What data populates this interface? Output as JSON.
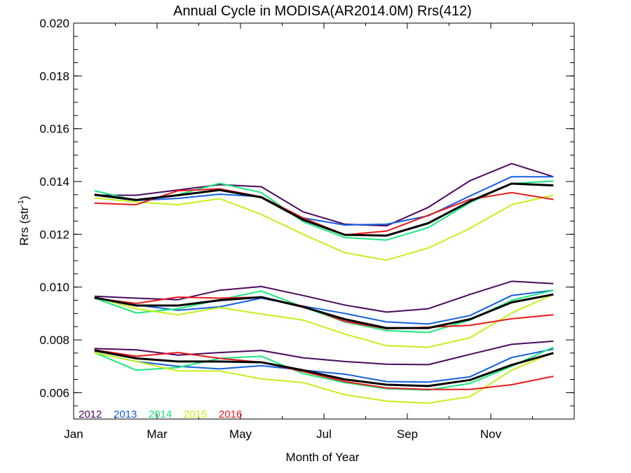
{
  "chart_data": {
    "type": "line",
    "title": "Annual Cycle in MODISA(AR2014.0M) Rrs(412)",
    "xlabel": "Month of Year",
    "ylabel": "Rrs (str",
    "ylabel_sup": "-1",
    "ylabel_close": ")",
    "xlim": [
      1,
      13
    ],
    "ylim": [
      0.005,
      0.02
    ],
    "x_ticks": [
      {
        "value": 1,
        "label": "Jan"
      },
      {
        "value": 3,
        "label": "Mar"
      },
      {
        "value": 5,
        "label": "May"
      },
      {
        "value": 7,
        "label": "Jul"
      },
      {
        "value": 9,
        "label": "Sep"
      },
      {
        "value": 11,
        "label": "Nov"
      }
    ],
    "y_ticks": [
      {
        "value": 0.006,
        "label": "0.006"
      },
      {
        "value": 0.008,
        "label": "0.008"
      },
      {
        "value": 0.01,
        "label": "0.010"
      },
      {
        "value": 0.012,
        "label": "0.012"
      },
      {
        "value": 0.014,
        "label": "0.014"
      },
      {
        "value": 0.016,
        "label": "0.016"
      },
      {
        "value": 0.018,
        "label": "0.018"
      },
      {
        "value": 0.02,
        "label": "0.020"
      }
    ],
    "grid": false,
    "legend_position": "bottom-left",
    "x": [
      1.5,
      2.5,
      3.5,
      4.5,
      5.5,
      6.5,
      7.5,
      8.5,
      9.5,
      10.5,
      11.5,
      12.5
    ],
    "series": [
      {
        "name": "2012",
        "color": "#4b0a5e",
        "groups": [
          [
            0.01348,
            0.01348,
            0.01368,
            0.01388,
            0.0138,
            0.01285,
            0.01238,
            0.01232,
            0.01302,
            0.01403,
            0.01468,
            0.01418
          ],
          [
            0.00965,
            0.00958,
            0.00952,
            0.00988,
            0.01002,
            0.00968,
            0.00932,
            0.00905,
            0.00918,
            0.00972,
            0.01022,
            0.01013
          ],
          [
            0.00767,
            0.00762,
            0.00742,
            0.00752,
            0.0076,
            0.00732,
            0.00718,
            0.00708,
            0.00706,
            0.00745,
            0.00783,
            0.00795
          ]
        ]
      },
      {
        "name": "2013",
        "color": "#1460e0",
        "groups": [
          [
            0.01348,
            0.01328,
            0.01336,
            0.01352,
            0.01342,
            0.01262,
            0.01235,
            0.01238,
            0.0127,
            0.01345,
            0.01418,
            0.01418
          ],
          [
            0.00958,
            0.00932,
            0.00912,
            0.00925,
            0.00958,
            0.00928,
            0.009,
            0.00868,
            0.0086,
            0.00892,
            0.00968,
            0.00988
          ],
          [
            0.00752,
            0.00718,
            0.007,
            0.0069,
            0.00702,
            0.00685,
            0.0067,
            0.00642,
            0.0064,
            0.0066,
            0.00733,
            0.00765
          ]
        ]
      },
      {
        "name": "2014",
        "color": "#19e87a",
        "groups": [
          [
            0.01365,
            0.01328,
            0.0135,
            0.01393,
            0.01358,
            0.01248,
            0.01188,
            0.01178,
            0.01225,
            0.0132,
            0.01392,
            0.01402
          ],
          [
            0.00958,
            0.00902,
            0.00918,
            0.00952,
            0.00985,
            0.00925,
            0.00868,
            0.00835,
            0.00828,
            0.00875,
            0.0095,
            0.00988
          ],
          [
            0.00752,
            0.00685,
            0.00695,
            0.0073,
            0.00738,
            0.00672,
            0.00638,
            0.00615,
            0.0061,
            0.00635,
            0.007,
            0.00772
          ]
        ]
      },
      {
        "name": "2015",
        "color": "#c5f01c",
        "groups": [
          [
            0.01338,
            0.01322,
            0.01312,
            0.01335,
            0.01275,
            0.012,
            0.0113,
            0.01102,
            0.01148,
            0.01222,
            0.01312,
            0.01348
          ],
          [
            0.00962,
            0.00918,
            0.00895,
            0.00922,
            0.00898,
            0.00875,
            0.00822,
            0.00778,
            0.00772,
            0.00808,
            0.00902,
            0.00972
          ],
          [
            0.00752,
            0.00718,
            0.00682,
            0.00682,
            0.00652,
            0.00638,
            0.00592,
            0.00568,
            0.0056,
            0.00585,
            0.00685,
            0.00752
          ]
        ]
      },
      {
        "name": "2016",
        "color": "#e8191c",
        "groups": [
          [
            0.01318,
            0.01312,
            0.01365,
            0.01372,
            0.01342,
            0.01262,
            0.01198,
            0.01212,
            0.01272,
            0.01332,
            0.01358,
            0.01332
          ],
          [
            0.00958,
            0.00938,
            0.00962,
            0.00958,
            0.00962,
            0.00928,
            0.0087,
            0.00842,
            0.00848,
            0.00855,
            0.0088,
            0.00895
          ],
          [
            0.00762,
            0.00738,
            0.00752,
            0.0073,
            0.00715,
            0.0068,
            0.00642,
            0.00618,
            0.00612,
            0.00612,
            0.0063,
            0.00662
          ]
        ]
      },
      {
        "name": "",
        "color": "#000000",
        "width": 3,
        "groups": [
          [
            0.0135,
            0.0133,
            0.01348,
            0.01368,
            0.0134,
            0.01255,
            0.01198,
            0.01195,
            0.01242,
            0.01325,
            0.01392,
            0.01385
          ],
          [
            0.0096,
            0.0093,
            0.0093,
            0.0095,
            0.00962,
            0.00925,
            0.00878,
            0.00845,
            0.00845,
            0.00878,
            0.00942,
            0.00972
          ],
          [
            0.0076,
            0.0073,
            0.00718,
            0.00718,
            0.00715,
            0.00685,
            0.0065,
            0.0063,
            0.00625,
            0.00648,
            0.00705,
            0.0075
          ]
        ]
      }
    ]
  }
}
